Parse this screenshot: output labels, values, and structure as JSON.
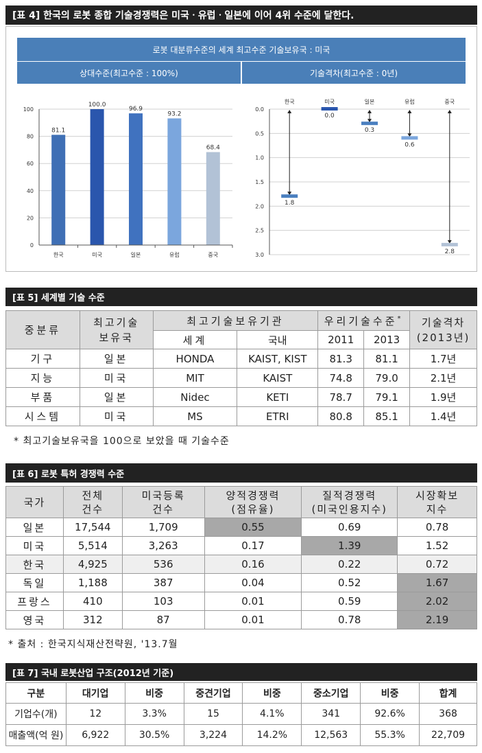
{
  "t4": {
    "header": "[표 4]  한국의 로봇 종합 기술경쟁력은 미국ㆍ유럽ㆍ일본에 이어 4위 수준에 달한다.",
    "banner": "로봇 대분류수준의 세계 최고수준 기술보유국 : 미국",
    "left_title": "상대수준(최고수준 : 100%)",
    "right_title": "기술격차(최고수준 : 0년)"
  },
  "chart_data": [
    {
      "type": "bar",
      "title": "상대수준(최고수준 : 100%)",
      "categories": [
        "한국",
        "미국",
        "일본",
        "유럽",
        "중국"
      ],
      "values": [
        81.1,
        100.0,
        96.9,
        93.2,
        68.4
      ],
      "value_labels": [
        "81.1",
        "100.0",
        "96.9",
        "93.2",
        "68.4"
      ],
      "ylim": [
        0,
        100
      ],
      "yticks": [
        "0",
        "20",
        "40",
        "60",
        "80",
        "100"
      ],
      "colors": [
        "#3f6fb5",
        "#2a56ad",
        "#4072bf",
        "#7ba6dd",
        "#b2c2d6"
      ],
      "grid": true
    },
    {
      "type": "gap",
      "title": "기술격차(최고수준 : 0년)",
      "categories": [
        "한국",
        "미국",
        "일본",
        "유럽",
        "중국"
      ],
      "values": [
        1.8,
        0.0,
        0.3,
        0.6,
        2.8
      ],
      "value_labels": [
        "1.8",
        "0.0",
        "0.3",
        "0.6",
        "2.8"
      ],
      "ylim": [
        0,
        3.0
      ],
      "yticks": [
        "0.0",
        "0.5",
        "1.0",
        "1.5",
        "2.0",
        "2.5",
        "3.0"
      ],
      "colors": [
        "#4a7fbf",
        "#2a56ad",
        "#4a7fbf",
        "#7ba6dd",
        "#b2c2d6"
      ],
      "grid": true
    }
  ],
  "t5": {
    "header": "[표 5] 세계별 기술 수준",
    "h_class": "중분류",
    "h_country": "최고기술\n보유국",
    "h_inst": "최고기술보유기관",
    "h_world": "세계",
    "h_domestic": "국내",
    "h_level": "우리기술수준",
    "h_level_mark": "*",
    "h_2011": "2011",
    "h_2013": "2013",
    "h_gap": "기술격차\n(2013년)",
    "rows": [
      {
        "c": "기구",
        "n": "일본",
        "w": "HONDA",
        "d": "KAIST, KIST",
        "a": "81.3",
        "b": "81.1",
        "g": "1.7년"
      },
      {
        "c": "지능",
        "n": "미국",
        "w": "MIT",
        "d": "KAIST",
        "a": "74.8",
        "b": "79.0",
        "g": "2.1년"
      },
      {
        "c": "부품",
        "n": "일본",
        "w": "Nidec",
        "d": "KETI",
        "a": "78.7",
        "b": "79.1",
        "g": "1.9년"
      },
      {
        "c": "시스템",
        "n": "미국",
        "w": "MS",
        "d": "ETRI",
        "a": "80.8",
        "b": "85.1",
        "g": "1.4년"
      }
    ],
    "note": "* 최고기술보유국을 100으로 보았을 때 기술수준"
  },
  "t6": {
    "header": "[표 6]  로봇 특허 경쟁력 수준",
    "h": [
      "국가",
      "전체\n건수",
      "미국등록\n건수",
      "양적경쟁력\n(점유율)",
      "질적경쟁력\n(미국인용지수)",
      "시장확보\n지수"
    ],
    "rows": [
      {
        "a": "일본",
        "b": "17,544",
        "c": "1,709",
        "d": "0.55",
        "e": "0.69",
        "f": "0.78"
      },
      {
        "a": "미국",
        "b": "5,514",
        "c": "3,263",
        "d": "0.17",
        "e": "1.39",
        "f": "1.52"
      },
      {
        "a": "한국",
        "b": "4,925",
        "c": "536",
        "d": "0.16",
        "e": "0.22",
        "f": "0.72"
      },
      {
        "a": "독일",
        "b": "1,188",
        "c": "387",
        "d": "0.04",
        "e": "0.52",
        "f": "1.67"
      },
      {
        "a": "프랑스",
        "b": "410",
        "c": "103",
        "d": "0.01",
        "e": "0.59",
        "f": "2.02"
      },
      {
        "a": "영국",
        "b": "312",
        "c": "87",
        "d": "0.01",
        "e": "0.78",
        "f": "2.19"
      }
    ],
    "note": "* 출처 : 한국지식재산전략원, '13.7월"
  },
  "t7": {
    "header": "[표 7] 국내 로봇산업 구조(2012년 기준)",
    "h": [
      "구분",
      "대기업",
      "비중",
      "중견기업",
      "비중",
      "중소기업",
      "비중",
      "합계"
    ],
    "rows": [
      [
        "기업수(개)",
        "12",
        "3.3%",
        "15",
        "4.1%",
        "341",
        "92.6%",
        "368"
      ],
      [
        "매출액(억 원)",
        "6,922",
        "30.5%",
        "3,224",
        "14.2%",
        "12,563",
        "55.3%",
        "22,709"
      ]
    ]
  }
}
